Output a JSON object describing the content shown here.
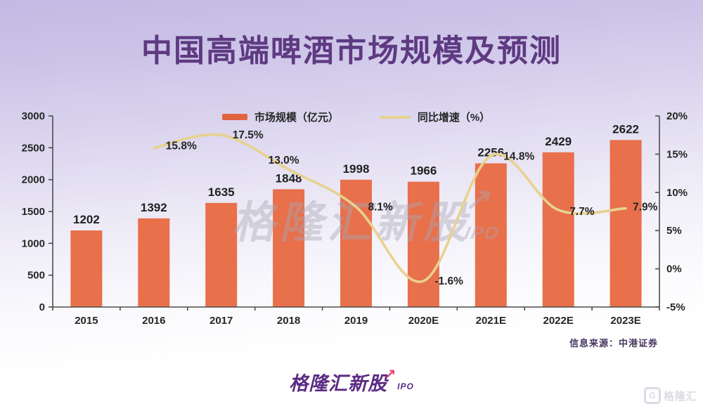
{
  "page": {
    "title": "中国高端啤酒市场规模及预测",
    "source": "信息来源：中港证券",
    "watermark": {
      "text": "格隆汇新股",
      "arrow": "↗",
      "sub": "IPO"
    },
    "footer_logo": {
      "text": "格隆汇新股",
      "arrow": "↗",
      "sub": "IPO"
    },
    "corner_logo": {
      "g": "G",
      "text": "格隆汇"
    },
    "colors": {
      "background_top": "#C3B9E3",
      "background_bottom": "#FFFFFF",
      "bar": "#E8704B",
      "line": "#E7D28E",
      "title_text": "#5E3A82",
      "axis": "#4D4D4D",
      "label_text": "#262626",
      "source_text": "#45355F",
      "logo_purple": "#5B2B84",
      "logo_pink": "#E8457A"
    }
  },
  "chart_data": {
    "type": "bar",
    "title": "中国高端啤酒市场规模及预测",
    "categories": [
      "2015",
      "2016",
      "2017",
      "2018",
      "2019",
      "2020E",
      "2021E",
      "2022E",
      "2023E"
    ],
    "series": [
      {
        "name": "市场规模（亿元）",
        "type": "bar",
        "axis": "left",
        "color": "#E8704B",
        "values": [
          1202,
          1392,
          1635,
          1848,
          1998,
          1966,
          2256,
          2429,
          2622
        ]
      },
      {
        "name": "同比增速（%）",
        "type": "line",
        "axis": "right",
        "color": "#E7D28E",
        "values": [
          null,
          15.8,
          17.5,
          13.0,
          8.1,
          -1.6,
          14.8,
          7.7,
          7.9
        ],
        "point_labels": [
          null,
          "15.8%",
          "17.5%",
          "13.0%",
          "8.1%",
          "-1.6%",
          "14.8%",
          "7.7%",
          "7.9%"
        ]
      }
    ],
    "left_axis": {
      "min": 0,
      "max": 3000,
      "step": 500,
      "tick_labels": [
        "0",
        "500",
        "1000",
        "1500",
        "2000",
        "2500",
        "3000"
      ]
    },
    "right_axis": {
      "min": -5,
      "max": 20,
      "step": 5,
      "tick_labels": [
        "-5%",
        "0%",
        "5%",
        "10%",
        "15%",
        "20%"
      ]
    },
    "legend_position": "top",
    "grid": false
  }
}
